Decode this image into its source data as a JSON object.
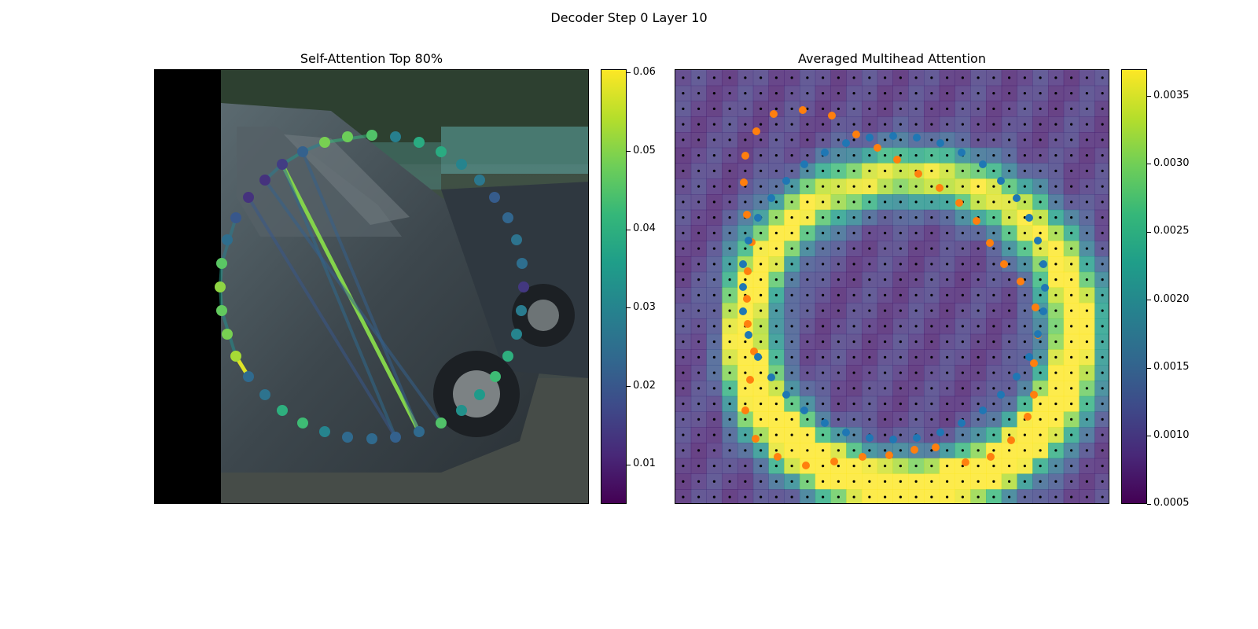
{
  "figure": {
    "suptitle": "Decoder Step 0 Layer 10"
  },
  "colors": {
    "viridis": [
      "#440154",
      "#482878",
      "#3e4a89",
      "#31688e",
      "#26828e",
      "#1f9e89",
      "#35b779",
      "#6ece58",
      "#b5de2b",
      "#fde725"
    ],
    "gt_points": "#ff7f0e",
    "pred_points": "#1f77b4",
    "grid_dots": "#000000"
  },
  "chart_data": [
    {
      "type": "scatter",
      "title": "Self-Attention Top 80%",
      "background": "camera image crop of a dark grey car with a black strip on the left edge",
      "colorbar": {
        "ticks": [
          "0.01",
          "0.02",
          "0.03",
          "0.04",
          "0.05",
          "0.06"
        ],
        "range": [
          0.005,
          0.0605
        ]
      },
      "points_xy": [
        [
          281,
          334
        ],
        [
          279,
          364
        ],
        [
          281,
          394
        ],
        [
          288,
          424
        ],
        [
          299,
          452
        ],
        [
          315,
          478
        ],
        [
          336,
          501
        ],
        [
          358,
          521
        ],
        [
          384,
          537
        ],
        [
          412,
          548
        ],
        [
          441,
          555
        ],
        [
          472,
          557
        ],
        [
          502,
          555
        ],
        [
          532,
          548
        ],
        [
          560,
          537
        ],
        [
          586,
          521
        ],
        [
          609,
          501
        ],
        [
          629,
          478
        ],
        [
          645,
          452
        ],
        [
          656,
          424
        ],
        [
          662,
          394
        ],
        [
          665,
          364
        ],
        [
          663,
          334
        ],
        [
          656,
          304
        ],
        [
          645,
          276
        ],
        [
          628,
          250
        ],
        [
          609,
          228
        ],
        [
          586,
          208
        ],
        [
          560,
          192
        ],
        [
          532,
          180
        ],
        [
          502,
          173
        ],
        [
          472,
          171
        ],
        [
          441,
          173
        ],
        [
          412,
          180
        ],
        [
          384,
          192
        ],
        [
          358,
          208
        ],
        [
          336,
          228
        ],
        [
          315,
          250
        ],
        [
          299,
          276
        ],
        [
          288,
          304
        ]
      ],
      "point_values": [
        0.046,
        0.051,
        0.047,
        0.049,
        0.053,
        0.024,
        0.026,
        0.04,
        0.043,
        0.03,
        0.024,
        0.024,
        0.022,
        0.024,
        0.045,
        0.033,
        0.035,
        0.043,
        0.04,
        0.03,
        0.028,
        0.014,
        0.025,
        0.026,
        0.023,
        0.021,
        0.027,
        0.03,
        0.039,
        0.039,
        0.029,
        0.045,
        0.048,
        0.049,
        0.022,
        0.015,
        0.013,
        0.013,
        0.02,
        0.025
      ],
      "edges": [
        {
          "from": 35,
          "to": 13,
          "value": 0.05
        },
        {
          "from": 4,
          "to": 5,
          "value": 0.058
        },
        {
          "from": 0,
          "to": 1,
          "value": 0.034
        },
        {
          "from": 1,
          "to": 2,
          "value": 0.036
        },
        {
          "from": 2,
          "to": 4,
          "value": 0.032
        },
        {
          "from": 0,
          "to": 38,
          "value": 0.028
        },
        {
          "from": 33,
          "to": 31,
          "value": 0.042
        },
        {
          "from": 35,
          "to": 34,
          "value": 0.034
        },
        {
          "from": 34,
          "to": 33,
          "value": 0.03
        },
        {
          "from": 36,
          "to": 35,
          "value": 0.028
        },
        {
          "from": 35,
          "to": 12,
          "value": 0.024
        },
        {
          "from": 34,
          "to": 13,
          "value": 0.022
        },
        {
          "from": 36,
          "to": 14,
          "value": 0.022
        },
        {
          "from": 37,
          "to": 12,
          "value": 0.02
        }
      ]
    },
    {
      "type": "heatmap",
      "title": "Averaged Multihead Attention",
      "grid": {
        "rows": 28,
        "cols": 28
      },
      "colorbar": {
        "ticks": [
          "0.0005",
          "0.0010",
          "0.0015",
          "0.0020",
          "0.0025",
          "0.0030",
          "0.0035"
        ],
        "range": [
          0.0005,
          0.0037
        ]
      },
      "orange_points": [
        [
          947,
          197
        ],
        [
          945,
          231
        ],
        [
          949,
          272
        ],
        [
          950,
          344
        ],
        [
          949,
          379
        ],
        [
          950,
          411
        ],
        [
          958,
          446
        ],
        [
          953,
          482
        ],
        [
          947,
          521
        ],
        [
          960,
          557
        ],
        [
          988,
          580
        ],
        [
          1024,
          591
        ],
        [
          1060,
          586
        ],
        [
          1096,
          580
        ],
        [
          1130,
          578
        ],
        [
          1162,
          571
        ],
        [
          1189,
          568
        ],
        [
          1227,
          587
        ],
        [
          1259,
          580
        ],
        [
          1285,
          559
        ],
        [
          1306,
          529
        ],
        [
          1314,
          501
        ],
        [
          1314,
          461
        ],
        [
          1319,
          425
        ],
        [
          1316,
          390
        ],
        [
          1297,
          357
        ],
        [
          1276,
          335
        ],
        [
          1258,
          308
        ],
        [
          1241,
          280
        ],
        [
          1219,
          257
        ],
        [
          1194,
          238
        ],
        [
          1167,
          220
        ],
        [
          1140,
          202
        ],
        [
          1115,
          187
        ],
        [
          1088,
          170
        ],
        [
          1057,
          146
        ],
        [
          1020,
          139
        ],
        [
          983,
          144
        ],
        [
          961,
          166
        ],
        [
          955,
          307
        ]
      ],
      "blue_points": [
        [
          944,
          335
        ],
        [
          944,
          364
        ],
        [
          944,
          395
        ],
        [
          951,
          425
        ],
        [
          963,
          453
        ],
        [
          980,
          479
        ],
        [
          999,
          501
        ],
        [
          1022,
          521
        ],
        [
          1048,
          537
        ],
        [
          1075,
          549
        ],
        [
          1105,
          556
        ],
        [
          1135,
          558
        ],
        [
          1165,
          556
        ],
        [
          1195,
          549
        ],
        [
          1222,
          537
        ],
        [
          1249,
          521
        ],
        [
          1272,
          501
        ],
        [
          1292,
          478
        ],
        [
          1308,
          453
        ],
        [
          1319,
          424
        ],
        [
          1326,
          395
        ],
        [
          1328,
          365
        ],
        [
          1326,
          335
        ],
        [
          1319,
          305
        ],
        [
          1308,
          276
        ],
        [
          1292,
          251
        ],
        [
          1272,
          229
        ],
        [
          1249,
          208
        ],
        [
          1222,
          193
        ],
        [
          1195,
          181
        ],
        [
          1165,
          174
        ],
        [
          1135,
          172
        ],
        [
          1105,
          174
        ],
        [
          1075,
          181
        ],
        [
          1048,
          193
        ],
        [
          1022,
          208
        ],
        [
          999,
          229
        ],
        [
          980,
          251
        ],
        [
          963,
          276
        ],
        [
          951,
          305
        ]
      ]
    }
  ]
}
